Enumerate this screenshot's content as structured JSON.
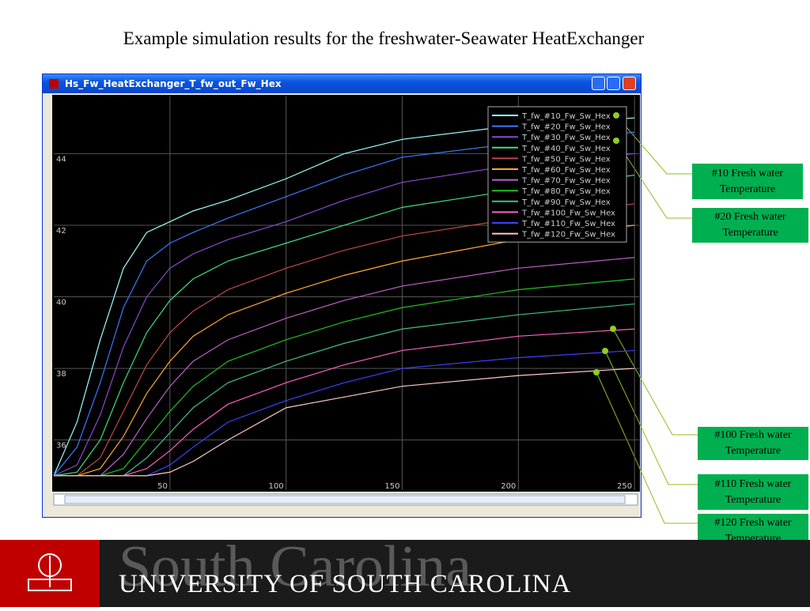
{
  "slide_title": "Example simulation results for the freshwater-Seawater HeatExchanger",
  "window_title": "Hs_Fw_HeatExchanger_T_fw_out_Fw_Hex",
  "chart_data": {
    "type": "line",
    "x": [
      0,
      10,
      20,
      30,
      40,
      50,
      60,
      75,
      100,
      125,
      150,
      200,
      250
    ],
    "xlim": [
      0,
      252
    ],
    "ylim": [
      34.6,
      45.6
    ],
    "xticks": [
      50,
      100,
      150,
      200,
      250
    ],
    "yticks": [
      36,
      38,
      40,
      42,
      44
    ],
    "grid": true,
    "legend": "upper right",
    "series": [
      {
        "name": "T_fw_#10_Fw_Sw_Hex",
        "color": "#a0ffff",
        "values": [
          35,
          36.5,
          38.8,
          40.8,
          41.8,
          42.1,
          42.4,
          42.7,
          43.3,
          44.0,
          44.4,
          44.8,
          45.0
        ]
      },
      {
        "name": "T_fw_#20_Fw_Sw_Hex",
        "color": "#3c78ff",
        "values": [
          35,
          35.8,
          37.6,
          39.7,
          41.0,
          41.5,
          41.8,
          42.2,
          42.8,
          43.4,
          43.9,
          44.3,
          44.6
        ]
      },
      {
        "name": "T_fw_#30_Fw_Sw_Hex",
        "color": "#8a48d0",
        "values": [
          35,
          35.3,
          36.7,
          38.6,
          40.0,
          40.8,
          41.2,
          41.6,
          42.1,
          42.7,
          43.2,
          43.7,
          44.0
        ]
      },
      {
        "name": "T_fw_#40_Fw_Sw_Hex",
        "color": "#40e080",
        "values": [
          35,
          35.1,
          36.0,
          37.6,
          39.0,
          39.9,
          40.5,
          41.0,
          41.5,
          42.0,
          42.5,
          43.0,
          43.4
        ]
      },
      {
        "name": "T_fw_#50_Fw_Sw_Hex",
        "color": "#c04848",
        "values": [
          35,
          35.0,
          35.5,
          36.8,
          38.1,
          39.0,
          39.6,
          40.2,
          40.8,
          41.3,
          41.7,
          42.2,
          42.6
        ]
      },
      {
        "name": "T_fw_#60_Fw_Sw_Hex",
        "color": "#ffa830",
        "values": [
          35,
          35.0,
          35.2,
          36.1,
          37.3,
          38.2,
          38.9,
          39.5,
          40.1,
          40.6,
          41.0,
          41.6,
          42.0
        ]
      },
      {
        "name": "T_fw_#70_Fw_Sw_Hex",
        "color": "#c060c8",
        "values": [
          35,
          35,
          35.0,
          35.6,
          36.6,
          37.5,
          38.2,
          38.8,
          39.4,
          39.9,
          40.3,
          40.8,
          41.1
        ]
      },
      {
        "name": "T_fw_#80_Fw_Sw_Hex",
        "color": "#20c020",
        "values": [
          35,
          35,
          35,
          35.2,
          36.0,
          36.8,
          37.5,
          38.2,
          38.8,
          39.3,
          39.7,
          40.2,
          40.5
        ]
      },
      {
        "name": "T_fw_#90_Fw_Sw_Hex",
        "color": "#40c088",
        "values": [
          35,
          35,
          35,
          35.0,
          35.5,
          36.2,
          36.9,
          37.6,
          38.2,
          38.7,
          39.1,
          39.5,
          39.8
        ]
      },
      {
        "name": "T_fw_#100_Fw_Sw_Hex",
        "color": "#ff60c0",
        "values": [
          35,
          35,
          35,
          35,
          35.2,
          35.7,
          36.3,
          37.0,
          37.6,
          38.1,
          38.5,
          38.9,
          39.1
        ]
      },
      {
        "name": "T_fw_#110_Fw_Sw_Hex",
        "color": "#4040ff",
        "values": [
          35,
          35,
          35,
          35,
          35.0,
          35.3,
          35.8,
          36.5,
          37.1,
          37.6,
          38.0,
          38.3,
          38.5
        ]
      },
      {
        "name": "T_fw_#120_Fw_Sw_Hex",
        "color": "#ffc8c8",
        "values": [
          35,
          35,
          35,
          35,
          35.0,
          35.1,
          35.4,
          36.0,
          36.9,
          37.2,
          37.5,
          37.8,
          38.0
        ]
      }
    ]
  },
  "annotations": [
    "#10 Fresh water Temperature",
    "#20 Fresh water Temperature",
    "#100 Fresh water Temperature",
    "#110 Fresh water Temperature",
    "#120 Fresh water Temperature"
  ],
  "footer": {
    "watermark": "South Carolina",
    "university": "UNIVERSITY OF SOUTH CAROLINA"
  }
}
